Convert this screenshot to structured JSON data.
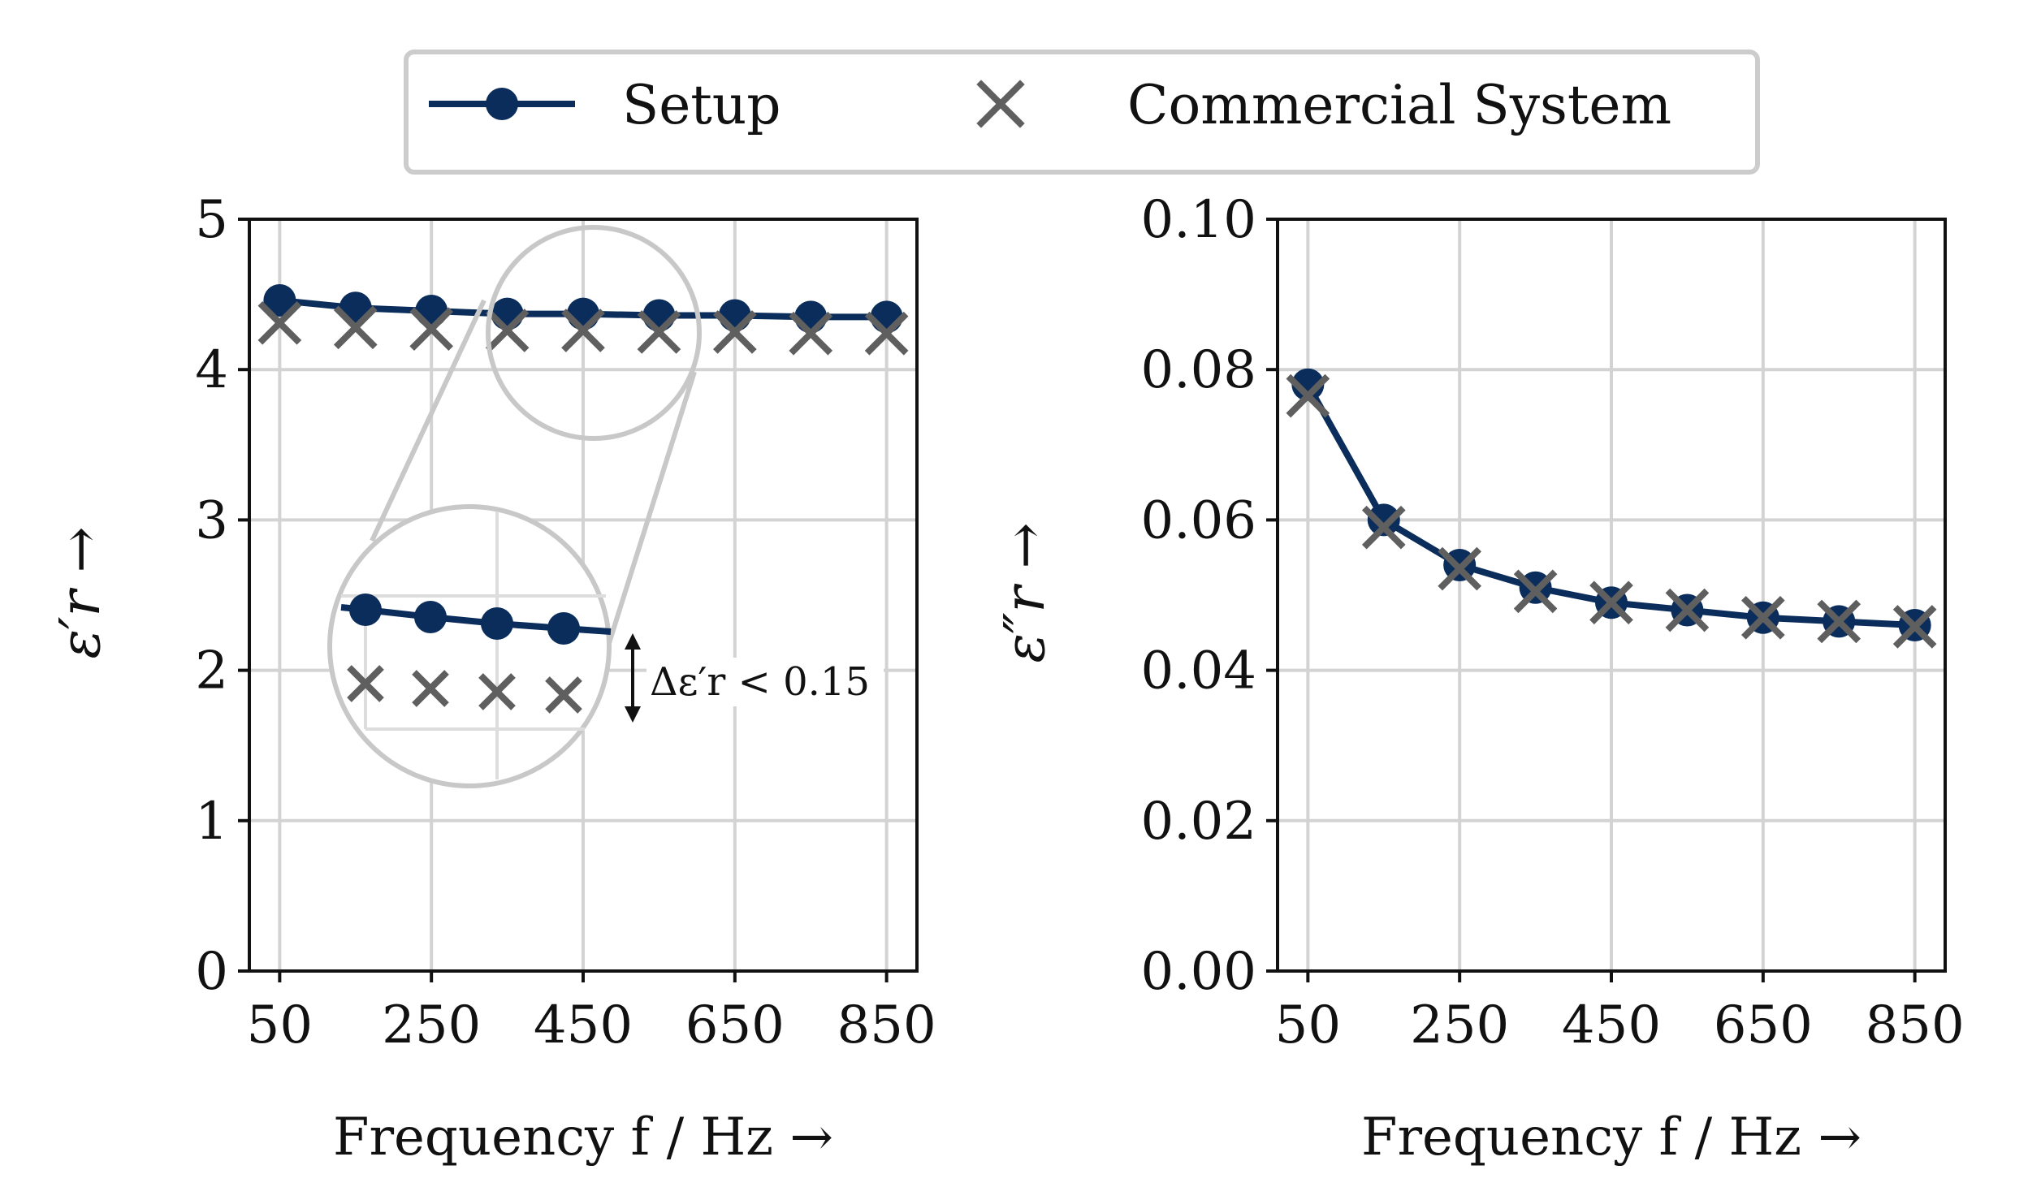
{
  "colors": {
    "setup": "#0b2d5b",
    "commercial": "#5f5f5f",
    "grid": "#d3d3d3",
    "zoom": "#c8c8c8",
    "axis": "#111111"
  },
  "legend": {
    "entries": [
      "Setup",
      "Commercial System"
    ],
    "location": "top-center"
  },
  "chart_data": [
    {
      "type": "line",
      "title": "",
      "xlabel": "Frequency f / Hz →",
      "ylabel": "ε′r →",
      "x": [
        50,
        150,
        250,
        350,
        450,
        550,
        650,
        750,
        850
      ],
      "xticks": [
        50,
        250,
        450,
        650,
        850
      ],
      "xtick_labels": [
        "50",
        "250",
        "450",
        "650",
        "850"
      ],
      "yticks": [
        0,
        1,
        2,
        3,
        4,
        5
      ],
      "ytick_labels": [
        "0",
        "1",
        "2",
        "3",
        "4",
        "5"
      ],
      "xlim": [
        10,
        890
      ],
      "ylim": [
        0,
        5
      ],
      "grid": true,
      "series": [
        {
          "name": "Setup",
          "values": [
            4.46,
            4.41,
            4.39,
            4.37,
            4.37,
            4.36,
            4.36,
            4.35,
            4.35
          ]
        },
        {
          "name": "Commercial System",
          "values": [
            4.31,
            4.28,
            4.27,
            4.26,
            4.26,
            4.25,
            4.25,
            4.24,
            4.24
          ]
        }
      ],
      "annotation": "Δε′r < 0.15"
    },
    {
      "type": "line",
      "title": "",
      "xlabel": "Frequency f / Hz →",
      "ylabel": "ε″r →",
      "x": [
        50,
        150,
        250,
        350,
        450,
        550,
        650,
        750,
        850
      ],
      "xticks": [
        50,
        250,
        450,
        650,
        850
      ],
      "xtick_labels": [
        "50",
        "250",
        "450",
        "650",
        "850"
      ],
      "yticks": [
        0.0,
        0.02,
        0.04,
        0.06,
        0.08,
        0.1
      ],
      "ytick_labels": [
        "0.00",
        "0.02",
        "0.04",
        "0.06",
        "0.08",
        "0.10"
      ],
      "xlim": [
        10,
        890
      ],
      "ylim": [
        0,
        0.1
      ],
      "grid": true,
      "series": [
        {
          "name": "Setup",
          "values": [
            0.078,
            0.06,
            0.054,
            0.051,
            0.049,
            0.048,
            0.047,
            0.0465,
            0.046
          ]
        },
        {
          "name": "Commercial System",
          "values": [
            0.0765,
            0.059,
            0.0535,
            0.0505,
            0.049,
            0.048,
            0.047,
            0.0465,
            0.0458
          ]
        }
      ]
    }
  ]
}
